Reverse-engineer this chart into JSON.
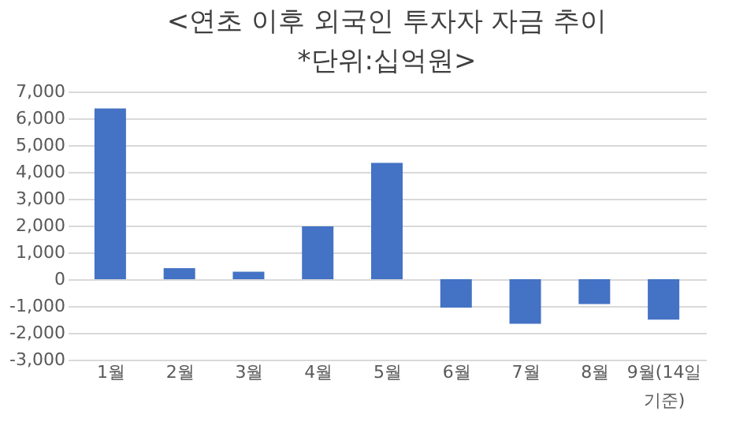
{
  "chart_data": {
    "type": "bar",
    "title": "<연초 이후 외국인 투자자 자금 추이",
    "subtitle": "*단위:십억원>",
    "categories": [
      "1월",
      "2월",
      "3월",
      "4월",
      "5월",
      "6월",
      "7월",
      "8월",
      "9월(14일 기준)"
    ],
    "values": [
      6370,
      410,
      280,
      1970,
      4340,
      -1060,
      -1660,
      -930,
      -1510
    ],
    "color": "#4472c4",
    "ylim": [
      -3000,
      7000
    ],
    "yticks": [
      {
        "value": -3000,
        "label": "-3,000"
      },
      {
        "value": -2000,
        "label": "-2,000"
      },
      {
        "value": -1000,
        "label": "-1,000"
      },
      0,
      {
        "value": 1000,
        "label": "1,000"
      },
      {
        "value": 2000,
        "label": "2,000"
      },
      {
        "value": 3000,
        "label": "3,000"
      },
      {
        "value": 4000,
        "label": "4,000"
      },
      {
        "value": 5000,
        "label": "5,000"
      },
      {
        "value": 6000,
        "label": "6,000"
      },
      {
        "value": 7000,
        "label": "7,000"
      }
    ],
    "grid": "y"
  }
}
